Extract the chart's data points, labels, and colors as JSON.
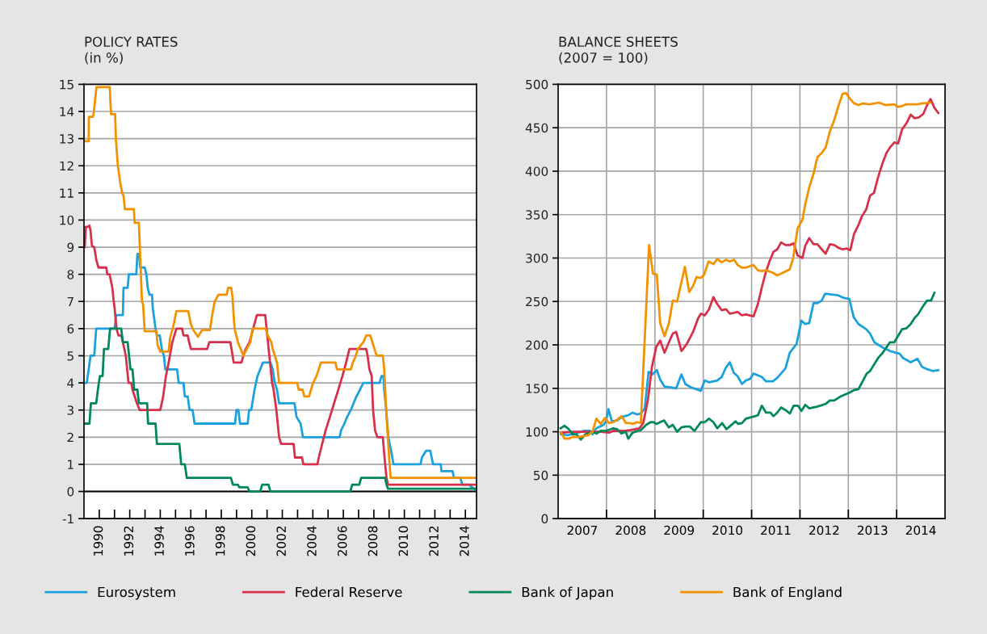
{
  "chart_data": [
    {
      "type": "line",
      "title": "POLICY RATES",
      "subtitle": "(in %)",
      "xlim": [
        1989,
        2014.73
      ],
      "ylim": [
        -1,
        15
      ],
      "yticks": [
        -1,
        0,
        1,
        2,
        3,
        4,
        5,
        6,
        7,
        8,
        9,
        10,
        11,
        12,
        13,
        14,
        15
      ],
      "xticks": [
        1990,
        {
          "value": 1991,
          "label": null
        },
        1992,
        {
          "value": 1993,
          "label": null
        },
        1994,
        {
          "value": 1995,
          "label": null
        },
        1996,
        {
          "value": 1997,
          "label": null
        },
        1998,
        {
          "value": 1999,
          "label": null
        },
        2000,
        {
          "value": 2001,
          "label": null
        },
        2002,
        {
          "value": 2003,
          "label": null
        },
        2004,
        {
          "value": 2005,
          "label": null
        },
        2006,
        {
          "value": 2007,
          "label": null
        },
        2008,
        {
          "value": 2009,
          "label": null
        },
        2010,
        {
          "value": 2011,
          "label": null
        },
        2012,
        {
          "value": 2013,
          "label": null
        },
        2014
      ],
      "grid": "y",
      "legend": "bottom",
      "ref_lines": [
        {
          "axis": "y",
          "value": 0,
          "color": "#000000"
        }
      ],
      "series": [
        {
          "name": "Eurosystem",
          "color": "#1ba1dd",
          "x": [
            1989.09,
            1989.18,
            1989.31,
            1989.43,
            1989.67,
            1989.8,
            1991.01,
            1991.1,
            1991.55,
            1991.59,
            1991.86,
            1991.94,
            1992.43,
            1992.5,
            1992.61,
            1992.69,
            1992.98,
            1993.09,
            1993.18,
            1993.29,
            1993.46,
            1993.51,
            1993.69,
            1993.78,
            1993.97,
            1994.1,
            1994.24,
            1994.33,
            1995.1,
            1995.21,
            1995.52,
            1995.61,
            1995.8,
            1995.92,
            1996.12,
            1996.25,
            1998.9,
            1998.99,
            1999.12,
            1999.23,
            1999.73,
            1999.82,
            1999.96,
            2000.18,
            2000.37,
            2000.73,
            2001.22,
            2001.37,
            2001.5,
            2001.65,
            2001.79,
            2002.8,
            2002.93,
            2003.2,
            2003.35,
            2005.76,
            2005.85,
            2006.07,
            2006.25,
            2006.49,
            2006.67,
            2006.86,
            2007.09,
            2007.31,
            2008.37,
            2008.5,
            2008.63,
            2008.68,
            2008.77,
            2008.95,
            2009.13,
            2009.29,
            2011.06,
            2011.15,
            2011.43,
            2011.7,
            2011.79,
            2011.88,
            2012.39,
            2012.43,
            2013.16,
            2013.25,
            2013.67,
            2013.8,
            2014.25,
            2014.44,
            2014.73
          ],
          "values": [
            4.0,
            4.0,
            4.5,
            5.0,
            5.0,
            6.0,
            6.0,
            6.5,
            6.5,
            7.5,
            7.5,
            8.0,
            8.0,
            8.75,
            8.75,
            8.25,
            8.25,
            8.0,
            7.5,
            7.25,
            7.25,
            6.75,
            6.0,
            5.75,
            5.75,
            5.25,
            5.0,
            4.5,
            4.5,
            4.0,
            4.0,
            3.5,
            3.5,
            3.0,
            3.0,
            2.5,
            2.5,
            3.0,
            3.0,
            2.5,
            2.5,
            3.0,
            3.0,
            3.75,
            4.25,
            4.75,
            4.75,
            4.5,
            4.0,
            3.75,
            3.25,
            3.25,
            2.75,
            2.5,
            2.0,
            2.0,
            2.25,
            2.5,
            2.75,
            3.0,
            3.25,
            3.5,
            3.75,
            4.0,
            4.0,
            4.25,
            4.25,
            3.75,
            3.25,
            2.0,
            1.5,
            1.0,
            1.0,
            1.25,
            1.5,
            1.5,
            1.25,
            1.0,
            1.0,
            0.75,
            0.75,
            0.5,
            0.5,
            0.25,
            0.25,
            0.15,
            0.05
          ]
        },
        {
          "name": "Federal Reserve",
          "color": "#d8304b",
          "x": [
            1989.05,
            1989.12,
            1989.27,
            1989.36,
            1989.43,
            1989.52,
            1989.67,
            1989.82,
            1989.95,
            1990.46,
            1990.53,
            1990.68,
            1990.86,
            1990.95,
            1991.01,
            1991.13,
            1991.26,
            1991.44,
            1991.55,
            1991.74,
            1991.83,
            1991.92,
            1992.1,
            1992.18,
            1992.47,
            1992.65,
            1994.0,
            1994.19,
            1994.37,
            1994.55,
            1994.79,
            1995.06,
            1995.43,
            1995.52,
            1995.8,
            1995.89,
            1996.01,
            1997.07,
            1997.22,
            1998.59,
            1998.67,
            1998.81,
            1999.32,
            1999.45,
            1999.6,
            1999.85,
            2000.09,
            2000.33,
            2000.88,
            2000.97,
            2001.15,
            2001.33,
            2001.43,
            2001.61,
            2001.79,
            2001.92,
            2002.74,
            2002.83,
            2003.29,
            2003.38,
            2004.3,
            2004.39,
            2004.61,
            2004.84,
            2005.12,
            2005.39,
            2005.67,
            2005.94,
            2006.18,
            2006.4,
            2007.5,
            2007.59,
            2007.71,
            2007.86,
            2007.95,
            2008.08,
            2008.23,
            2008.59,
            2008.74,
            2008.83,
            2008.92,
            2014.73
          ],
          "values": [
            9.0,
            9.75,
            9.75,
            9.8,
            9.6,
            9.05,
            9.0,
            8.5,
            8.25,
            8.25,
            8.0,
            8.0,
            7.5,
            7.0,
            6.75,
            6.0,
            5.75,
            5.75,
            5.5,
            5.0,
            4.5,
            4.0,
            4.0,
            3.75,
            3.25,
            3.0,
            3.0,
            3.5,
            4.25,
            4.75,
            5.5,
            6.0,
            6.0,
            5.75,
            5.75,
            5.5,
            5.25,
            5.25,
            5.5,
            5.5,
            5.25,
            4.75,
            4.75,
            5.0,
            5.25,
            5.5,
            6.0,
            6.5,
            6.5,
            6.0,
            5.0,
            4.0,
            3.75,
            3.0,
            2.0,
            1.75,
            1.75,
            1.25,
            1.25,
            1.0,
            1.0,
            1.25,
            1.75,
            2.25,
            2.75,
            3.25,
            3.75,
            4.25,
            4.75,
            5.25,
            5.25,
            5.0,
            4.5,
            4.25,
            3.0,
            2.25,
            2.0,
            2.0,
            1.0,
            0.5,
            0.25,
            0.25
          ]
        },
        {
          "name": "Bank of Japan",
          "color": "#00885d",
          "x": [
            1989.05,
            1989.36,
            1989.45,
            1989.8,
            1989.91,
            1990.04,
            1990.22,
            1990.31,
            1990.59,
            1990.71,
            1991.44,
            1991.55,
            1991.86,
            1992.05,
            1992.18,
            1992.29,
            1992.5,
            1992.6,
            1993.14,
            1993.2,
            1993.69,
            1993.78,
            1995.25,
            1995.37,
            1995.61,
            1995.74,
            1998.63,
            1998.76,
            1999.09,
            1999.18,
            1999.73,
            1999.85,
            2000.55,
            2000.68,
            2001.1,
            2001.22,
            2006.45,
            2006.58,
            2007.04,
            2007.17,
            2008.74,
            2008.81,
            2008.92,
            2014.73
          ],
          "values": [
            2.5,
            2.5,
            3.25,
            3.25,
            3.75,
            4.25,
            4.25,
            5.25,
            5.25,
            6.0,
            6.0,
            5.5,
            5.5,
            4.5,
            4.5,
            3.75,
            3.75,
            3.25,
            3.25,
            2.5,
            2.5,
            1.75,
            1.75,
            1.0,
            1.0,
            0.5,
            0.5,
            0.25,
            0.25,
            0.15,
            0.15,
            0.0,
            0.0,
            0.25,
            0.25,
            0.0,
            0.0,
            0.25,
            0.25,
            0.5,
            0.5,
            0.3,
            0.1,
            0.1
          ]
        },
        {
          "name": "Bank of England",
          "color": "#f39200",
          "x": [
            1989.09,
            1989.31,
            1989.32,
            1989.58,
            1989.63,
            1989.82,
            1990.69,
            1990.77,
            1991.04,
            1991.1,
            1991.22,
            1991.37,
            1991.5,
            1991.59,
            1991.68,
            1992.27,
            1992.32,
            1992.6,
            1992.8,
            1992.87,
            1992.98,
            1993.75,
            1993.82,
            1994.0,
            1994.55,
            1994.64,
            1994.88,
            1995.06,
            1995.83,
            1996.01,
            1996.16,
            1996.47,
            1996.75,
            1997.26,
            1997.4,
            1997.57,
            1997.81,
            1998.35,
            1998.45,
            1998.65,
            1998.72,
            1998.87,
            1999.09,
            1999.27,
            1999.45,
            1999.67,
            1999.91,
            2000.05,
            2000.91,
            2001.04,
            2001.28,
            2001.37,
            2001.65,
            2001.79,
            2002.98,
            2003.07,
            2003.33,
            2003.44,
            2003.75,
            2003.88,
            2004.02,
            2004.24,
            2004.39,
            2004.53,
            2005.48,
            2005.58,
            2006.49,
            2006.62,
            2006.82,
            2006.95,
            2007.31,
            2007.5,
            2007.77,
            2007.9,
            2008.04,
            2008.19,
            2008.59,
            2008.68,
            2008.81,
            2008.92,
            2009.03,
            2009.1,
            2014.73
          ],
          "values": [
            12.9,
            12.9,
            13.8,
            13.8,
            13.9,
            14.9,
            14.9,
            13.9,
            13.9,
            12.9,
            12.0,
            11.4,
            11.0,
            10.9,
            10.4,
            10.4,
            9.9,
            9.9,
            7.0,
            6.9,
            5.9,
            5.9,
            5.4,
            5.15,
            5.15,
            5.65,
            6.15,
            6.65,
            6.65,
            6.15,
            5.95,
            5.7,
            5.95,
            5.95,
            6.5,
            7.0,
            7.25,
            7.25,
            7.5,
            7.5,
            7.25,
            6.0,
            5.5,
            5.25,
            5.0,
            5.25,
            5.5,
            6.0,
            6.0,
            5.75,
            5.5,
            5.25,
            4.75,
            4.0,
            4.0,
            3.75,
            3.75,
            3.5,
            3.5,
            3.75,
            4.0,
            4.25,
            4.5,
            4.75,
            4.75,
            4.5,
            4.5,
            4.75,
            5.0,
            5.25,
            5.5,
            5.75,
            5.75,
            5.5,
            5.25,
            5.0,
            5.0,
            4.5,
            3.0,
            2.0,
            1.0,
            0.5,
            0.5
          ]
        }
      ]
    },
    {
      "type": "line",
      "title": "BALANCE SHEETS",
      "subtitle": "(2007 = 100)",
      "xlim": [
        2007,
        2015
      ],
      "ylim": [
        0,
        500
      ],
      "yticks": [
        0,
        50,
        100,
        150,
        200,
        250,
        300,
        350,
        400,
        450,
        500
      ],
      "xticks": [
        {
          "value": 2008,
          "label": null
        },
        {
          "value": 2009,
          "label": null
        },
        {
          "value": 2010,
          "label": null
        },
        {
          "value": 2011,
          "label": null
        },
        {
          "value": 2012,
          "label": null
        },
        {
          "value": 2013,
          "label": null
        },
        {
          "value": 2014,
          "label": null
        },
        {
          "value": 2007.5,
          "label": "2007"
        },
        {
          "value": 2008.5,
          "label": "2008"
        },
        {
          "value": 2009.5,
          "label": "2009"
        },
        {
          "value": 2010.5,
          "label": "2010"
        },
        {
          "value": 2011.5,
          "label": "2011"
        },
        {
          "value": 2012.5,
          "label": "2012"
        },
        {
          "value": 2013.5,
          "label": "2013"
        },
        {
          "value": 2014.5,
          "label": "2014"
        }
      ],
      "grid": true,
      "legend": "bottom",
      "series": [
        {
          "name": "Eurosystem",
          "color": "#1ba1dd",
          "x": [
            2007.06,
            2007.19,
            2007.36,
            2007.53,
            2007.65,
            2007.71,
            2007.79,
            2007.94,
            2007.99,
            2008.04,
            2008.11,
            2008.22,
            2008.31,
            2008.45,
            2008.54,
            2008.63,
            2008.71,
            2008.79,
            2008.87,
            2008.95,
            2009.04,
            2009.11,
            2009.2,
            2009.33,
            2009.44,
            2009.55,
            2009.63,
            2009.75,
            2009.86,
            2009.95,
            2010.03,
            2010.12,
            2010.29,
            2010.38,
            2010.47,
            2010.55,
            2010.63,
            2010.71,
            2010.8,
            2010.88,
            2010.97,
            2011.04,
            2011.21,
            2011.3,
            2011.44,
            2011.53,
            2011.7,
            2011.79,
            2011.93,
            2012.03,
            2012.11,
            2012.19,
            2012.28,
            2012.36,
            2012.45,
            2012.52,
            2012.65,
            2012.79,
            2012.91,
            2013.02,
            2013.11,
            2013.21,
            2013.37,
            2013.45,
            2013.54,
            2013.71,
            2013.86,
            2013.98,
            2014.06,
            2014.13,
            2014.29,
            2014.43,
            2014.52,
            2014.63,
            2014.74,
            2014.86
          ],
          "values": [
            97,
            96,
            98,
            101,
            101,
            97,
            104,
            108,
            112,
            126,
            112,
            113,
            117,
            119,
            122,
            120,
            121,
            127,
            169,
            166,
            171,
            160,
            152,
            151,
            150,
            166,
            155,
            151,
            149,
            147,
            159,
            157,
            159,
            163,
            174,
            180,
            168,
            164,
            155,
            159,
            161,
            167,
            163,
            158,
            158,
            162,
            173,
            191,
            201,
            228,
            224,
            225,
            248,
            248,
            251,
            259,
            258,
            257,
            254,
            253,
            232,
            224,
            218,
            213,
            203,
            197,
            193,
            191,
            190,
            185,
            180,
            184,
            175,
            172,
            170,
            171
          ]
        },
        {
          "name": "Federal Reserve",
          "color": "#d8304b",
          "x": [
            2007.06,
            2007.3,
            2007.65,
            2007.88,
            2008.05,
            2008.14,
            2008.34,
            2008.51,
            2008.68,
            2008.76,
            2008.86,
            2008.94,
            2009.03,
            2009.11,
            2009.2,
            2009.29,
            2009.37,
            2009.44,
            2009.55,
            2009.66,
            2009.79,
            2009.89,
            2009.95,
            2010.03,
            2010.12,
            2010.21,
            2010.29,
            2010.38,
            2010.47,
            2010.55,
            2010.64,
            2010.71,
            2010.8,
            2010.88,
            2011.04,
            2011.13,
            2011.21,
            2011.29,
            2011.37,
            2011.45,
            2011.53,
            2011.61,
            2011.7,
            2011.79,
            2011.87,
            2011.95,
            2012.05,
            2012.11,
            2012.19,
            2012.28,
            2012.36,
            2012.45,
            2012.53,
            2012.62,
            2012.71,
            2012.79,
            2012.88,
            2012.97,
            2013.04,
            2013.12,
            2013.21,
            2013.28,
            2013.37,
            2013.45,
            2013.53,
            2013.61,
            2013.7,
            2013.79,
            2013.87,
            2013.95,
            2014.03,
            2014.11,
            2014.2,
            2014.29,
            2014.37,
            2014.46,
            2014.55,
            2014.62,
            2014.7,
            2014.78,
            2014.86
          ],
          "values": [
            99,
            100,
            100,
            100,
            99,
            101,
            101,
            102,
            104,
            110,
            138,
            175,
            198,
            205,
            191,
            203,
            213,
            215,
            193,
            201,
            215,
            230,
            236,
            234,
            241,
            255,
            247,
            240,
            241,
            236,
            237,
            238,
            234,
            235,
            233,
            247,
            266,
            283,
            296,
            307,
            310,
            318,
            315,
            315,
            317,
            303,
            300,
            314,
            323,
            316,
            316,
            310,
            305,
            316,
            315,
            312,
            310,
            311,
            309,
            328,
            338,
            348,
            356,
            372,
            375,
            392,
            408,
            421,
            428,
            433,
            432,
            448,
            455,
            465,
            461,
            462,
            466,
            475,
            483,
            473,
            467
          ]
        },
        {
          "name": "Bank of Japan",
          "color": "#00885d",
          "x": [
            2007.05,
            2007.13,
            2007.22,
            2007.3,
            2007.38,
            2007.47,
            2007.56,
            2007.71,
            2007.79,
            2007.88,
            2007.99,
            2008.14,
            2008.22,
            2008.31,
            2008.4,
            2008.45,
            2008.54,
            2008.71,
            2008.82,
            2008.91,
            2008.97,
            2009.03,
            2009.19,
            2009.29,
            2009.37,
            2009.46,
            2009.55,
            2009.63,
            2009.72,
            2009.82,
            2009.95,
            2010.03,
            2010.12,
            2010.21,
            2010.29,
            2010.39,
            2010.48,
            2010.67,
            2010.72,
            2010.8,
            2010.88,
            2011.01,
            2011.13,
            2011.21,
            2011.3,
            2011.39,
            2011.45,
            2011.53,
            2011.61,
            2011.7,
            2011.79,
            2011.87,
            2011.96,
            2012.03,
            2012.11,
            2012.19,
            2012.36,
            2012.53,
            2012.62,
            2012.71,
            2012.82,
            2012.94,
            2013.02,
            2013.12,
            2013.21,
            2013.38,
            2013.45,
            2013.63,
            2013.7,
            2013.86,
            2013.95,
            2014.11,
            2014.2,
            2014.29,
            2014.37,
            2014.44,
            2014.55,
            2014.63,
            2014.71,
            2014.78
          ],
          "values": [
            104,
            107,
            103,
            97,
            97,
            91,
            97,
            100,
            98,
            101,
            101,
            104,
            103,
            98,
            100,
            92,
            99,
            102,
            108,
            111,
            111,
            109,
            113,
            105,
            108,
            100,
            105,
            106,
            106,
            101,
            111,
            111,
            115,
            111,
            104,
            110,
            103,
            112,
            109,
            110,
            115,
            117,
            119,
            130,
            122,
            122,
            118,
            122,
            128,
            125,
            121,
            130,
            130,
            124,
            131,
            127,
            129,
            132,
            136,
            136,
            140,
            143,
            145,
            148,
            149,
            167,
            170,
            186,
            190,
            203,
            203,
            218,
            219,
            224,
            231,
            235,
            245,
            251,
            251,
            260
          ]
        },
        {
          "name": "Bank of England",
          "color": "#f39200",
          "x": [
            2007.06,
            2007.13,
            2007.22,
            2007.3,
            2007.42,
            2007.53,
            2007.62,
            2007.71,
            2007.79,
            2007.88,
            2007.97,
            2008.05,
            2008.14,
            2008.22,
            2008.31,
            2008.4,
            2008.48,
            2008.54,
            2008.63,
            2008.71,
            2008.88,
            2008.96,
            2009.04,
            2009.11,
            2009.2,
            2009.29,
            2009.37,
            2009.46,
            2009.62,
            2009.71,
            2009.79,
            2009.86,
            2009.95,
            2010.02,
            2010.11,
            2010.21,
            2010.29,
            2010.38,
            2010.47,
            2010.55,
            2010.64,
            2010.71,
            2010.8,
            2010.88,
            2011.04,
            2011.13,
            2011.21,
            2011.3,
            2011.44,
            2011.53,
            2011.61,
            2011.79,
            2011.86,
            2011.95,
            2012.05,
            2012.11,
            2012.19,
            2012.28,
            2012.36,
            2012.45,
            2012.53,
            2012.62,
            2012.71,
            2012.79,
            2012.88,
            2012.95,
            2013.04,
            2013.12,
            2013.21,
            2013.29,
            2013.45,
            2013.63,
            2013.77,
            2013.95,
            2014.03,
            2014.11,
            2014.2,
            2014.43,
            2014.52,
            2014.69
          ],
          "values": [
            99,
            92,
            92,
            94,
            94,
            95,
            96,
            100,
            115,
            109,
            116,
            110,
            111,
            114,
            118,
            110,
            110,
            109,
            111,
            110,
            315,
            282,
            281,
            225,
            210,
            225,
            251,
            250,
            290,
            261,
            268,
            278,
            277,
            281,
            296,
            293,
            299,
            295,
            298,
            296,
            298,
            292,
            289,
            289,
            292,
            286,
            285,
            286,
            283,
            280,
            282,
            287,
            300,
            334,
            344,
            362,
            381,
            397,
            416,
            421,
            427,
            446,
            459,
            474,
            489,
            490,
            483,
            478,
            476,
            478,
            477,
            479,
            476,
            477,
            474,
            475,
            477,
            477,
            478,
            479
          ]
        }
      ]
    }
  ]
}
